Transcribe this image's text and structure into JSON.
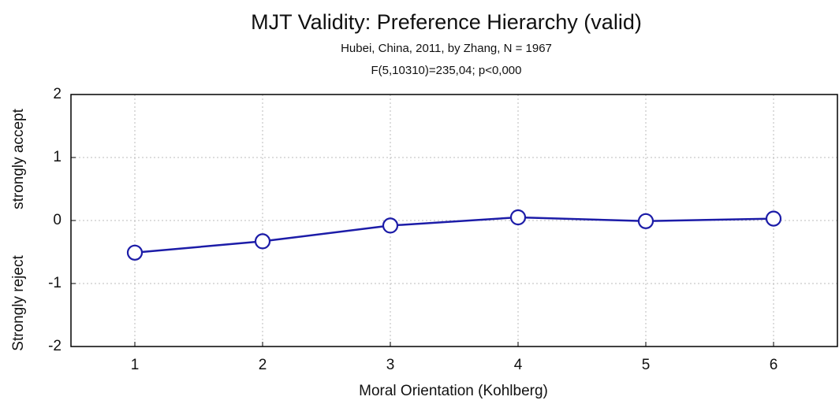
{
  "chart_data": {
    "type": "line",
    "title": "MJT Validity: Preference Hierarchy (valid)",
    "subtitle": [
      "Hubei, China, 2011, by Zhang, N = 1967",
      "F(5,10310)=235,04; p<0,000"
    ],
    "xlabel": "Moral Orientation (Kohlberg)",
    "ylabels": [
      "strongly accept",
      "Strongly reject"
    ],
    "x": [
      1,
      2,
      3,
      4,
      5,
      6
    ],
    "series": [
      {
        "color": "#1c1ca8",
        "values": [
          -0.51,
          -0.33,
          -0.08,
          0.05,
          -0.01,
          0.03
        ]
      }
    ],
    "xlim": [
      0.5,
      6.5
    ],
    "xticks": [
      1,
      2,
      3,
      4,
      5,
      6
    ],
    "ylim": [
      -2,
      2
    ],
    "yticks": [
      2,
      1,
      0,
      -1,
      -2
    ],
    "grid": true
  }
}
